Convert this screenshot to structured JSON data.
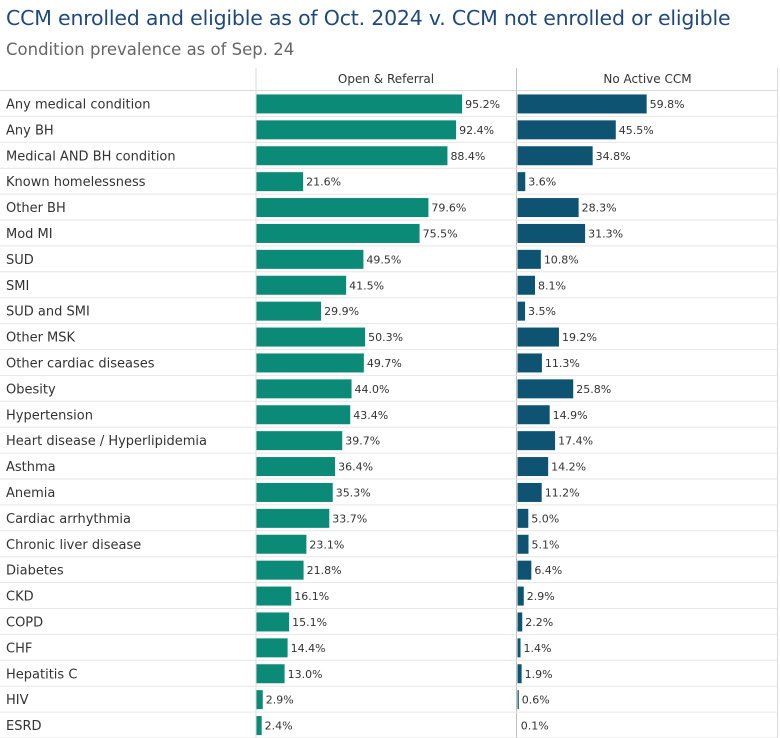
{
  "title": "CCM enrolled and eligible as of Oct. 2024 v. CCM not enrolled or eligible",
  "subtitle": "Condition prevalence as of Sep. 24",
  "chart_data": {
    "type": "bar",
    "orientation": "horizontal",
    "title": "CCM enrolled and eligible as of Oct. 2024 v. CCM not enrolled or eligible",
    "subtitle": "Condition prevalence as of Sep. 24",
    "categories": [
      "Any medical condition",
      "Any BH",
      "Medical AND BH condition",
      "Known homelessness",
      "Other BH",
      "Mod MI",
      "SUD",
      "SMI",
      "SUD and SMI",
      "Other MSK",
      "Other cardiac diseases",
      "Obesity",
      "Hypertension",
      "Heart disease / Hyperlipidemia",
      "Asthma",
      "Anemia",
      "Cardiac arrhythmia",
      "Chronic liver disease",
      "Diabetes",
      "CKD",
      "COPD",
      "CHF",
      "Hepatitis C",
      "HIV",
      "ESRD"
    ],
    "series": [
      {
        "name": "Open & Referral",
        "color": "#0b8a78",
        "values": [
          95.2,
          92.4,
          88.4,
          21.6,
          79.6,
          75.5,
          49.5,
          41.5,
          29.9,
          50.3,
          49.7,
          44.0,
          43.4,
          39.7,
          36.4,
          35.3,
          33.7,
          23.1,
          21.8,
          16.1,
          15.1,
          14.4,
          13.0,
          2.9,
          2.4
        ],
        "labels": [
          "95.2%",
          "92.4%",
          "88.4%",
          "21.6%",
          "79.6%",
          "75.5%",
          "49.5%",
          "41.5%",
          "29.9%",
          "50.3%",
          "49.7%",
          "44.0%",
          "43.4%",
          "39.7%",
          "36.4%",
          "35.3%",
          "33.7%",
          "23.1%",
          "21.8%",
          "16.1%",
          "15.1%",
          "14.4%",
          "13.0%",
          "2.9%",
          "2.4%"
        ]
      },
      {
        "name": "No Active CCM",
        "color": "#0e5472",
        "values": [
          59.8,
          45.5,
          34.8,
          3.6,
          28.3,
          31.3,
          10.8,
          8.1,
          3.5,
          19.2,
          11.3,
          25.8,
          14.9,
          17.4,
          14.2,
          11.2,
          5.0,
          5.1,
          6.4,
          2.9,
          2.2,
          1.4,
          1.9,
          0.6,
          0.1
        ],
        "labels": [
          "59.8%",
          "45.5%",
          "34.8%",
          "3.6%",
          "28.3%",
          "31.3%",
          "10.8%",
          "8.1%",
          "3.5%",
          "19.2%",
          "11.3%",
          "25.8%",
          "14.9%",
          "17.4%",
          "14.2%",
          "11.2%",
          "5.0%",
          "5.1%",
          "6.4%",
          "2.9%",
          "2.2%",
          "1.4%",
          "1.9%",
          "0.6%",
          "0.1%"
        ]
      }
    ],
    "xlim": [
      0,
      100
    ],
    "grid": false,
    "legend": "panel headers"
  }
}
